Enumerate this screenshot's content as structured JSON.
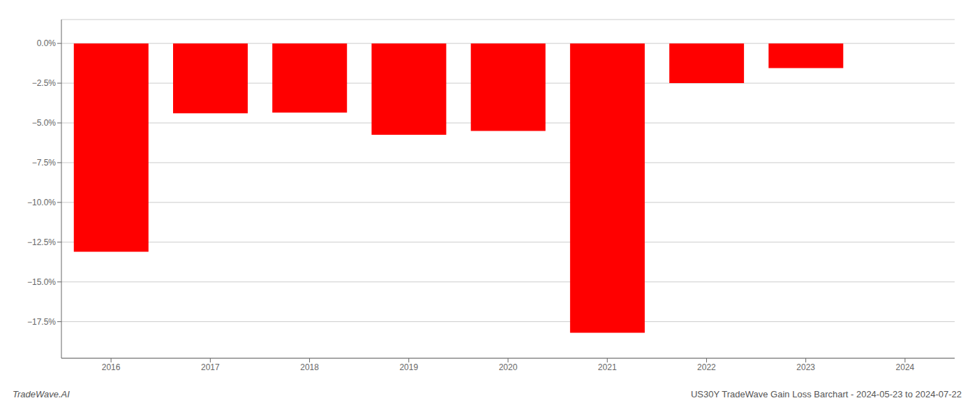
{
  "chart_data": {
    "type": "bar",
    "categories": [
      "2016",
      "2017",
      "2018",
      "2019",
      "2020",
      "2021",
      "2022",
      "2023",
      "2024"
    ],
    "values": [
      -13.1,
      -4.4,
      -4.35,
      -5.75,
      -5.5,
      -18.2,
      -2.5,
      -1.55,
      0.0
    ],
    "color": "#ff0000",
    "ylim": [
      -19.8,
      1.5
    ],
    "yticks": [
      {
        "value": 0.0,
        "label": "0.0%"
      },
      {
        "value": -2.5,
        "label": "−2.5%"
      },
      {
        "value": -5.0,
        "label": "−5.0%"
      },
      {
        "value": -7.5,
        "label": "−7.5%"
      },
      {
        "value": -10.0,
        "label": "−10.0%"
      },
      {
        "value": -12.5,
        "label": "−12.5%"
      },
      {
        "value": -15.0,
        "label": "−15.0%"
      },
      {
        "value": -17.5,
        "label": "−17.5%"
      }
    ],
    "grid": true,
    "annotations": [
      "TradeWave.AI",
      "US30Y TradeWave Gain Loss Barchart - 2024-05-23 to 2024-07-22"
    ]
  }
}
